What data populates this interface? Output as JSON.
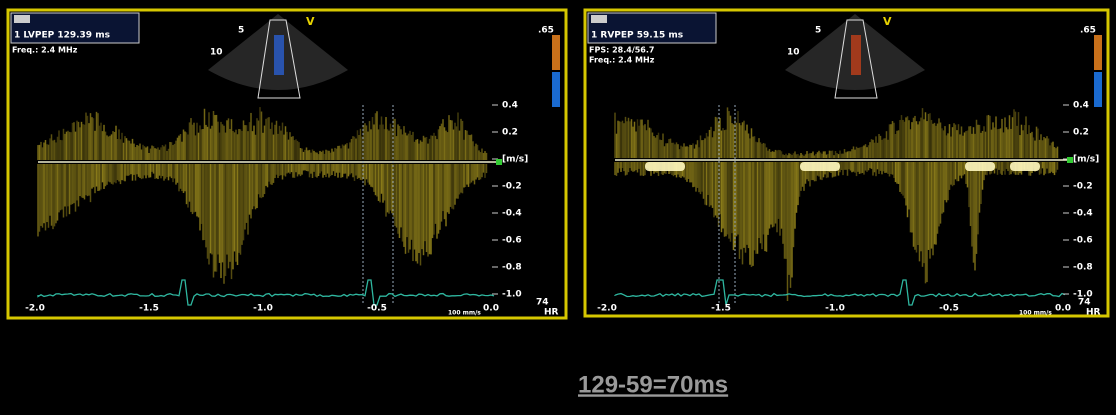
{
  "panels": [
    {
      "header": "1 LVPEP 129.39 ms",
      "info": [
        "Freq.: 2.4 MHz"
      ],
      "color_scale_top": ".65",
      "depth_labels": [
        "5",
        "10"
      ],
      "marker": "V",
      "velocity_labels": [
        "0.4",
        "0.2",
        "[m/s]",
        "-0.2",
        "-0.4",
        "-0.6",
        "-0.8",
        "-1.0"
      ],
      "time_labels": [
        "-2.0",
        "-1.5",
        "-1.0",
        "-0.5",
        "0.0"
      ],
      "sweep": "100 mm/s",
      "hr_value": "74",
      "hr_label": "HR"
    },
    {
      "header": "1 RVPEP 59.15 ms",
      "info": [
        "FPS: 28.4/56.7",
        "Freq.: 2.4 MHz"
      ],
      "color_scale_top": ".65",
      "depth_labels": [
        "5",
        "10"
      ],
      "marker": "V",
      "velocity_labels": [
        "0.4",
        "0.2",
        "[m/s]",
        "-0.2",
        "-0.4",
        "-0.6",
        "-0.8",
        "-1.0"
      ],
      "time_labels": [
        "-2.0",
        "-1.5",
        "-1.0",
        "-0.5",
        "0.0"
      ],
      "sweep": "100 mm/s",
      "hr_value": "74",
      "hr_label": "HR"
    }
  ],
  "footer": {
    "equation": "129-59=70ms"
  }
}
